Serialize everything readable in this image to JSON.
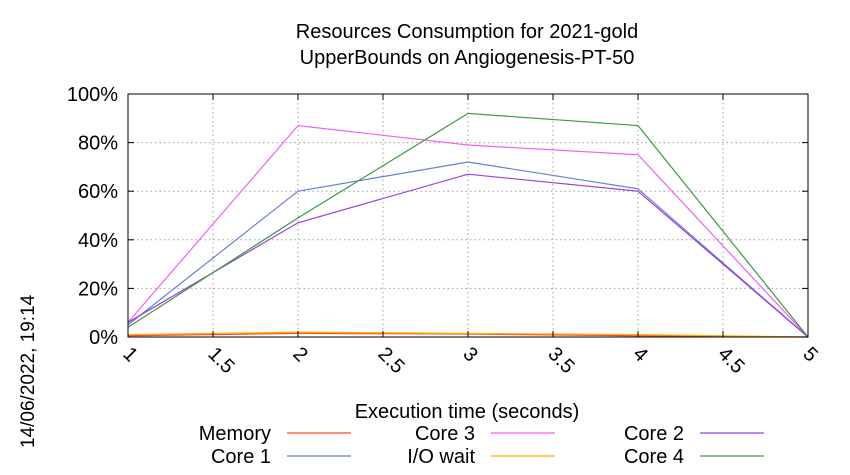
{
  "chart_data": {
    "type": "line",
    "title": [
      "Resources Consumption for 2021-gold",
      "UpperBounds on Angiogenesis-PT-50"
    ],
    "xlabel": "Execution time (seconds)",
    "ylabel": "",
    "timestamp": "14/06/2022, 19:14",
    "xlim": [
      1,
      5
    ],
    "ylim": [
      0,
      100
    ],
    "x_ticks": [
      1,
      1.5,
      2,
      2.5,
      3,
      3.5,
      4,
      4.5,
      5
    ],
    "x_tick_labels": [
      "1",
      "1.5",
      "2",
      "2.5",
      "3",
      "3.5",
      "4",
      "4.5",
      "5"
    ],
    "y_ticks": [
      0,
      20,
      40,
      60,
      80,
      100
    ],
    "y_tick_labels": [
      "0%",
      "20%",
      "40%",
      "60%",
      "80%",
      "100%"
    ],
    "grid": true,
    "legend_position": "bottom",
    "x": [
      1,
      2,
      3,
      4,
      5
    ],
    "series": [
      {
        "name": "Memory",
        "color": "#ff4d2a",
        "values": [
          0.5,
          1.5,
          1.2,
          0.5,
          0
        ]
      },
      {
        "name": "Core 1",
        "color": "#6a7fd8",
        "values": [
          5,
          60,
          72,
          61,
          0
        ]
      },
      {
        "name": "Core 3",
        "color": "#f060f0",
        "values": [
          6,
          87,
          79,
          75,
          0
        ]
      },
      {
        "name": "I/O wait",
        "color": "#ffb000",
        "values": [
          1,
          2,
          1.5,
          1,
          0
        ]
      },
      {
        "name": "Core 2",
        "color": "#9a40e0",
        "values": [
          6,
          47,
          67,
          60,
          0
        ]
      },
      {
        "name": "Core 4",
        "color": "#3a9a3a",
        "values": [
          4,
          49,
          92,
          87,
          0
        ]
      }
    ]
  }
}
